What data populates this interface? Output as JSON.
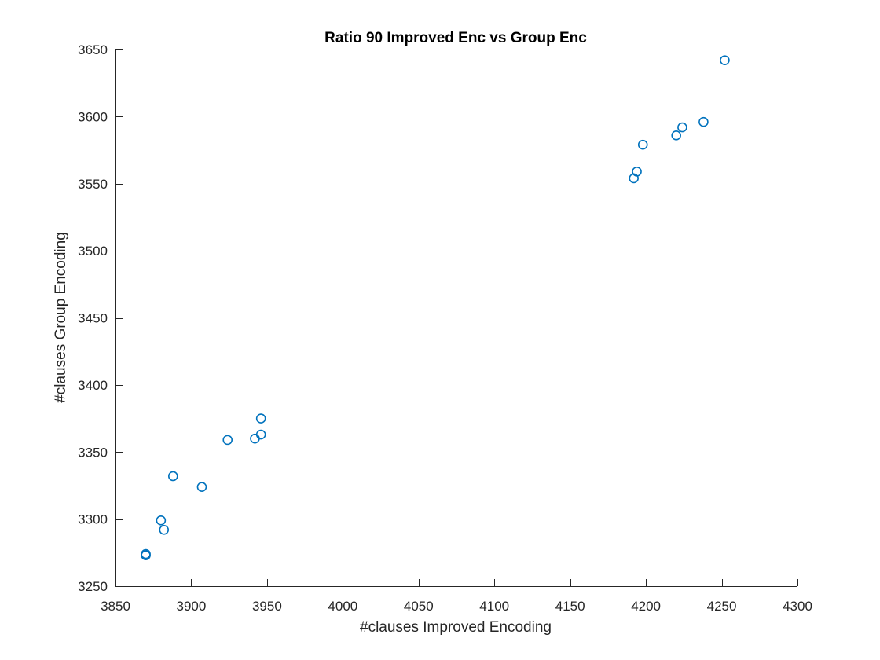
{
  "chart_data": {
    "type": "scatter",
    "title": "Ratio 90 Improved Enc vs Group Enc",
    "xlabel": "#clauses Improved Encoding",
    "ylabel": "#clauses Group Encoding",
    "xlim": [
      3850,
      4300
    ],
    "ylim": [
      3250,
      3650
    ],
    "xticks": [
      3850,
      3900,
      3950,
      4000,
      4050,
      4100,
      4150,
      4200,
      4250,
      4300
    ],
    "yticks": [
      3250,
      3300,
      3350,
      3400,
      3450,
      3500,
      3550,
      3600,
      3650
    ],
    "grid": false,
    "marker": "circle-open",
    "color": "#0072BD",
    "series": [
      {
        "points": [
          {
            "x": 3870,
            "y": 3273
          },
          {
            "x": 3870,
            "y": 3274
          },
          {
            "x": 3880,
            "y": 3299
          },
          {
            "x": 3882,
            "y": 3292
          },
          {
            "x": 3888,
            "y": 3332
          },
          {
            "x": 3907,
            "y": 3324
          },
          {
            "x": 3924,
            "y": 3359
          },
          {
            "x": 3942,
            "y": 3360
          },
          {
            "x": 3946,
            "y": 3363
          },
          {
            "x": 3946,
            "y": 3375
          },
          {
            "x": 4192,
            "y": 3554
          },
          {
            "x": 4194,
            "y": 3559
          },
          {
            "x": 4198,
            "y": 3579
          },
          {
            "x": 4220,
            "y": 3586
          },
          {
            "x": 4224,
            "y": 3592
          },
          {
            "x": 4238,
            "y": 3596
          },
          {
            "x": 4252,
            "y": 3642
          }
        ]
      }
    ]
  }
}
